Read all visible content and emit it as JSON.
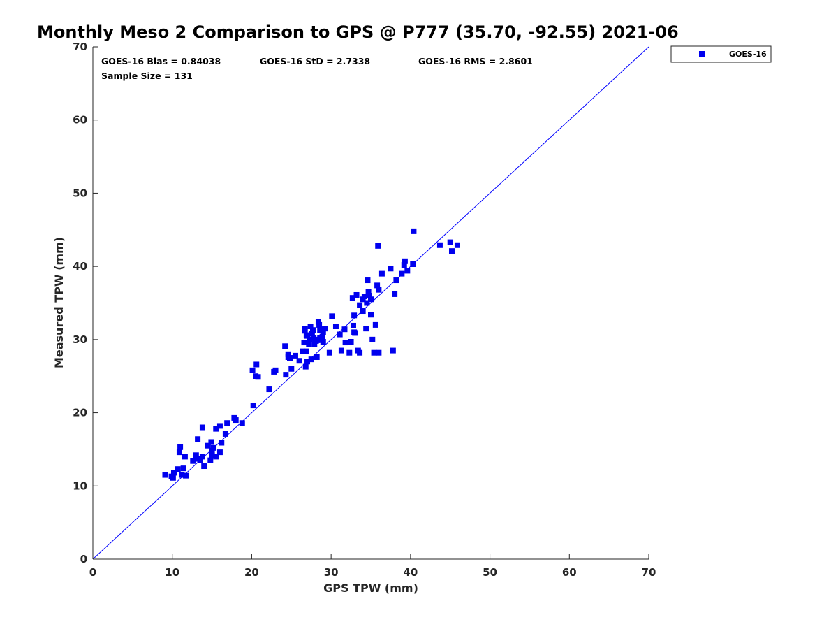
{
  "chart_data": {
    "type": "scatter",
    "title": "Monthly Meso 2 Comparison to GPS @ P777 (35.70, -92.55) 2021-06",
    "xlabel": "GPS TPW (mm)",
    "ylabel": "Measured TPW (mm)",
    "xlim": [
      0,
      70
    ],
    "ylim": [
      0,
      70
    ],
    "xticks": [
      0,
      10,
      20,
      30,
      40,
      50,
      60,
      70
    ],
    "yticks": [
      0,
      10,
      20,
      30,
      40,
      50,
      60,
      70
    ],
    "grid": false,
    "legend_position": "outside-top-right",
    "reference_line": {
      "description": "one-to-one line",
      "x": [
        0,
        70
      ],
      "y": [
        0,
        70
      ],
      "color": "#0000ff"
    },
    "annotations": [
      "GOES-16 Bias = 0.84038",
      "GOES-16 StD = 2.7338",
      "GOES-16 RMS = 2.8601",
      "Sample Size = 131"
    ],
    "series": [
      {
        "name": "GOES-16",
        "color": "#0000ee",
        "marker": "square",
        "x": [
          9.1,
          9.9,
          10.1,
          10.2,
          10.7,
          10.9,
          11.0,
          11.2,
          11.4,
          11.6,
          11.7,
          12.6,
          13.0,
          13.2,
          13.3,
          13.5,
          13.8,
          13.8,
          14.0,
          14.5,
          14.8,
          14.9,
          15.0,
          15.0,
          15.2,
          15.5,
          15.5,
          16.0,
          16.0,
          16.2,
          16.7,
          16.9,
          17.8,
          18.0,
          18.8,
          20.1,
          20.2,
          20.5,
          20.6,
          20.8,
          22.2,
          22.8,
          23.0,
          24.2,
          24.3,
          24.6,
          24.8,
          25.0,
          25.5,
          26.0,
          26.4,
          26.6,
          26.7,
          26.8,
          26.9,
          27.0,
          27.2,
          27.4,
          27.5,
          27.7,
          27.9,
          28.0,
          28.2,
          28.4,
          28.6,
          28.9,
          29.2,
          29.8,
          30.1,
          30.6,
          31.1,
          31.3,
          31.7,
          31.8,
          32.3,
          32.5,
          32.7,
          32.8,
          32.9,
          33.2,
          33.4,
          33.6,
          34.0,
          34.2,
          34.4,
          34.6,
          34.7,
          34.8,
          35.0,
          35.2,
          35.4,
          35.6,
          35.8,
          35.9,
          36.0,
          36.4,
          37.5,
          37.8,
          38.0,
          38.2,
          38.9,
          39.2,
          39.3,
          39.6,
          40.3,
          40.4,
          43.7,
          45.0,
          45.2,
          45.9,
          27.6,
          28.8,
          26.7,
          27.3,
          28.1,
          29.0,
          28.5,
          26.9,
          27.8,
          28.3,
          33.6,
          34.5,
          32.9,
          34.0,
          35.0,
          33.0,
          27.0,
          28.6,
          29.0,
          24.6,
          36.0
        ],
        "y": [
          11.5,
          11.3,
          11.1,
          11.8,
          12.3,
          14.6,
          15.3,
          11.5,
          12.4,
          14.0,
          11.4,
          13.4,
          14.2,
          16.4,
          13.7,
          13.5,
          18.0,
          14.0,
          12.7,
          15.5,
          13.5,
          16.0,
          14.2,
          14.8,
          15.2,
          17.8,
          14.0,
          18.2,
          14.6,
          15.9,
          17.1,
          18.6,
          19.3,
          19.0,
          18.6,
          25.8,
          21.0,
          25.0,
          26.6,
          24.9,
          23.2,
          25.6,
          25.8,
          29.1,
          25.2,
          28.0,
          27.5,
          26.0,
          27.8,
          27.1,
          28.4,
          29.6,
          31.5,
          26.3,
          28.4,
          30.5,
          29.4,
          31.8,
          27.3,
          31.3,
          29.4,
          30.0,
          27.6,
          32.4,
          31.3,
          30.4,
          31.5,
          28.2,
          33.2,
          31.8,
          30.7,
          28.5,
          31.4,
          29.6,
          28.2,
          29.7,
          35.7,
          31.9,
          31.0,
          36.1,
          28.5,
          34.7,
          33.9,
          35.9,
          31.5,
          38.1,
          36.5,
          36.0,
          33.4,
          30.0,
          28.2,
          32.0,
          37.4,
          42.8,
          36.8,
          39.0,
          39.7,
          28.5,
          36.2,
          38.1,
          39.0,
          40.2,
          40.7,
          39.4,
          40.3,
          44.8,
          42.9,
          43.3,
          42.1,
          42.9,
          30.8,
          30.1,
          31.2,
          30.0,
          29.8,
          31.0,
          32.0,
          30.6,
          30.2,
          29.9,
          28.2,
          35.0,
          33.3,
          35.5,
          35.5,
          30.9,
          27.0,
          30.2,
          29.7,
          27.6,
          28.2
        ]
      }
    ]
  }
}
